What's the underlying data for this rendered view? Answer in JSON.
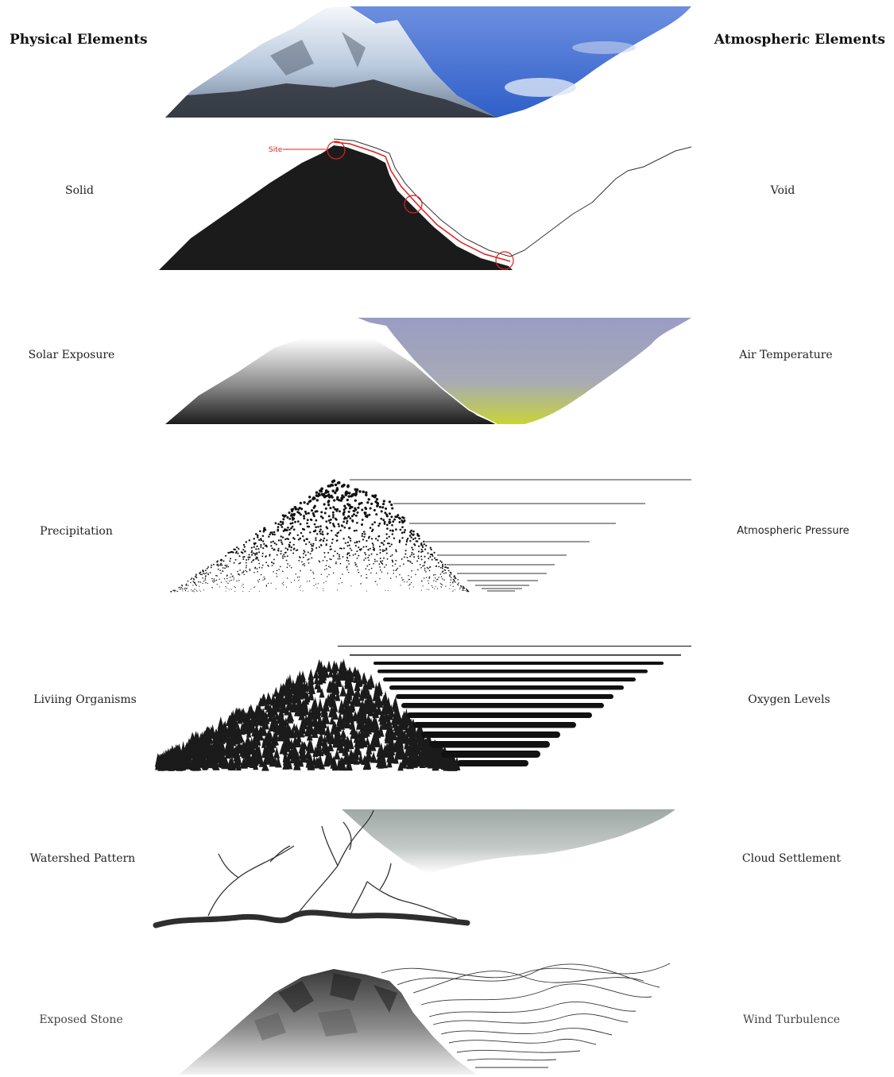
{
  "headings": {
    "physical": "Physical Elements",
    "atmospheric": "Atmospheric Elements"
  },
  "site_marker": "Site",
  "rows": [
    {
      "physical": "Solid",
      "atmospheric": "Void"
    },
    {
      "physical": "Solar Exposure",
      "atmospheric": "Air Temperature"
    },
    {
      "physical": "Precipitation",
      "atmospheric": "Atmospheric Pressure"
    },
    {
      "physical": "Liviing Organisms",
      "atmospheric": "Oxygen Levels"
    },
    {
      "physical": "Watershed Pattern",
      "atmospheric": "Cloud Settlement"
    },
    {
      "physical": "Exposed Stone",
      "atmospheric": "Wind Turbulence"
    }
  ],
  "colors": {
    "sky": "#3f6fd0",
    "snow": "#e8eef6",
    "rock": "#2b2f36",
    "solid": "#1b1b1b",
    "site": "#e02020",
    "air": "#9a9cc4",
    "warm": "#c8d43a",
    "cloud": "#9aa29f"
  }
}
